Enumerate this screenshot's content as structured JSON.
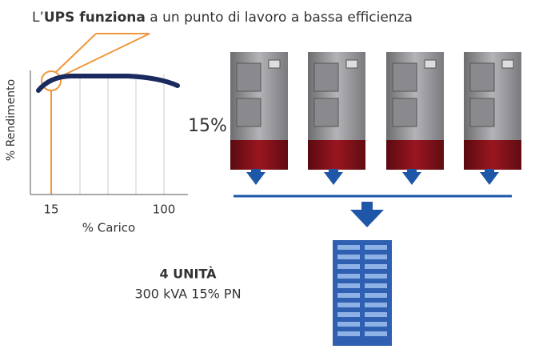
{
  "header": {
    "prefix": "L’",
    "bold": "UPS funziona",
    "rest": " a un punto di lavoro a bassa efficienza"
  },
  "graph": {
    "y_label": "% Rendimento",
    "x_label": "% Carico",
    "x_ticks": [
      "15",
      "100"
    ]
  },
  "load_label": "15%",
  "summary": {
    "units": "4 UNITÀ",
    "detail": "300 kVA 15% PN"
  }
}
